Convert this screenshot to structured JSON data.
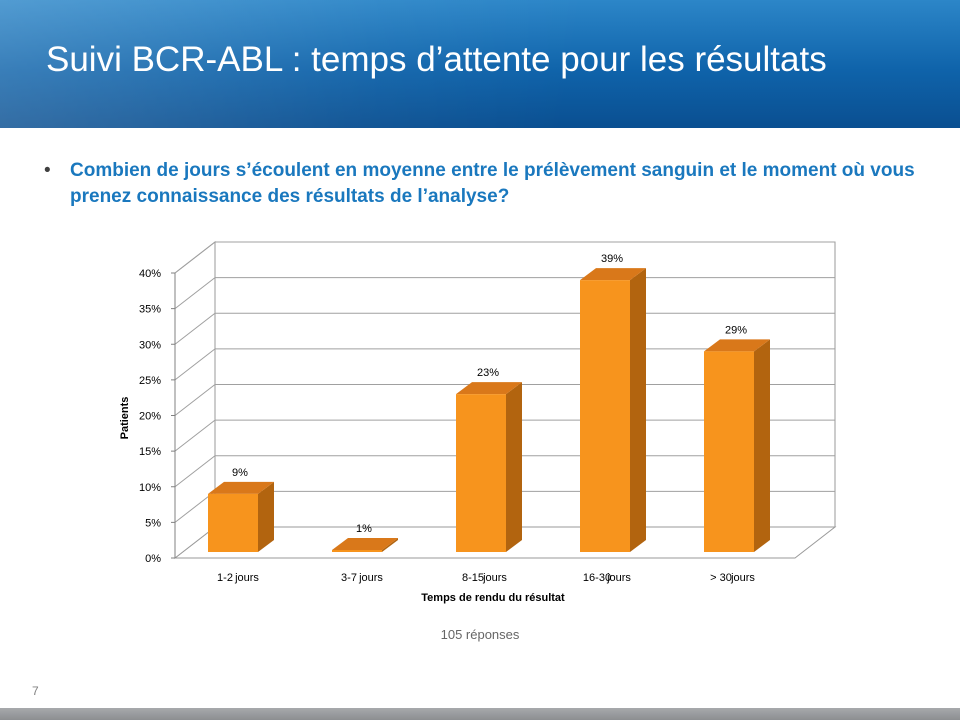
{
  "slide": {
    "title": "Suivi BCR-ABL : temps d’attente pour les résultats",
    "bullet": "•",
    "question": "Combien de jours s’écoulent en moyenne entre le prélèvement sanguin et le moment où vous prenez connaissance des résultats de l’analyse?",
    "responses_note": "105 réponses",
    "page_number": "7"
  },
  "colors": {
    "header_blue": "#0f63aa",
    "question_blue": "#1a78be",
    "bar_front": "#f7941d",
    "bar_side": "#b2640f",
    "bar_top": "#d9781a"
  },
  "chart_data": {
    "type": "bar",
    "three_d": true,
    "categories": [
      "1-2 jours",
      "3-7 jours",
      "8-15 jours",
      "16-30 jours",
      "> 30 jours"
    ],
    "category_parts": [
      [
        "1-2",
        "jours"
      ],
      [
        "3-7",
        "jours"
      ],
      [
        "8-15",
        "jours"
      ],
      [
        "16-30",
        "jours"
      ],
      [
        "> 30",
        "jours"
      ]
    ],
    "values": [
      9,
      1,
      23,
      39,
      29
    ],
    "data_labels": [
      "9%",
      "1%",
      "23%",
      "39%",
      "29%"
    ],
    "ylim": [
      0,
      40
    ],
    "yticks": [
      "0%",
      "5%",
      "10%",
      "15%",
      "20%",
      "25%",
      "30%",
      "35%",
      "40%"
    ],
    "xlabel": "Temps de rendu du résultat",
    "ylabel": "Patients",
    "grid": true,
    "legend": "none"
  }
}
